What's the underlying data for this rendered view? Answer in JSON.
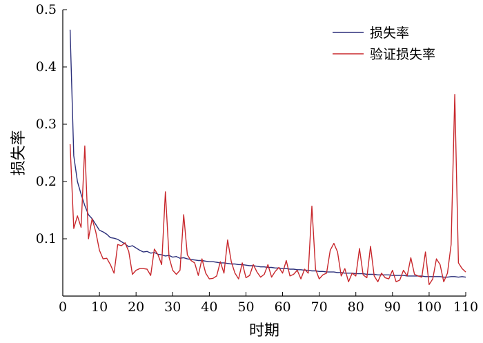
{
  "chart_data": {
    "type": "line",
    "xlabel": "时期",
    "ylabel": "损失率",
    "xlim": [
      0,
      110
    ],
    "ylim": [
      0,
      0.5
    ],
    "x_ticks": [
      0,
      10,
      20,
      30,
      40,
      50,
      60,
      70,
      80,
      90,
      100,
      110
    ],
    "y_ticks": [
      0.1,
      0.2,
      0.3,
      0.4,
      0.5
    ],
    "y_tick_labels": [
      "0.1",
      "0.2",
      "0.3",
      "0.4",
      "0.5"
    ],
    "legend_position": "top-right",
    "grid": false,
    "series": [
      {
        "name": "损失率",
        "color": "#2b2f7a",
        "x": [
          2,
          3,
          4,
          5,
          6,
          7,
          8,
          9,
          10,
          11,
          12,
          13,
          14,
          15,
          16,
          17,
          18,
          19,
          20,
          21,
          22,
          23,
          24,
          25,
          26,
          27,
          28,
          29,
          30,
          31,
          32,
          33,
          34,
          35,
          36,
          37,
          38,
          39,
          40,
          41,
          42,
          43,
          44,
          45,
          46,
          47,
          48,
          49,
          50,
          51,
          52,
          53,
          54,
          55,
          56,
          57,
          58,
          59,
          60,
          61,
          62,
          63,
          64,
          65,
          66,
          67,
          68,
          69,
          70,
          71,
          72,
          73,
          74,
          75,
          76,
          77,
          78,
          79,
          80,
          81,
          82,
          83,
          84,
          85,
          86,
          87,
          88,
          89,
          90,
          91,
          92,
          93,
          94,
          95,
          96,
          97,
          98,
          99,
          100,
          101,
          102,
          103,
          104,
          105,
          106,
          107,
          108,
          109,
          110
        ],
        "y": [
          0.465,
          0.245,
          0.2,
          0.178,
          0.158,
          0.142,
          0.135,
          0.125,
          0.115,
          0.112,
          0.108,
          0.102,
          0.101,
          0.099,
          0.095,
          0.091,
          0.086,
          0.088,
          0.084,
          0.08,
          0.077,
          0.078,
          0.075,
          0.076,
          0.073,
          0.072,
          0.07,
          0.071,
          0.068,
          0.069,
          0.066,
          0.067,
          0.065,
          0.064,
          0.063,
          0.062,
          0.062,
          0.061,
          0.06,
          0.06,
          0.059,
          0.058,
          0.058,
          0.057,
          0.056,
          0.056,
          0.055,
          0.055,
          0.054,
          0.053,
          0.053,
          0.052,
          0.051,
          0.051,
          0.05,
          0.05,
          0.049,
          0.049,
          0.048,
          0.048,
          0.047,
          0.047,
          0.046,
          0.046,
          0.045,
          0.045,
          0.044,
          0.044,
          0.043,
          0.043,
          0.042,
          0.042,
          0.042,
          0.041,
          0.041,
          0.04,
          0.04,
          0.04,
          0.039,
          0.039,
          0.039,
          0.038,
          0.038,
          0.038,
          0.037,
          0.037,
          0.037,
          0.037,
          0.036,
          0.036,
          0.036,
          0.036,
          0.035,
          0.035,
          0.035,
          0.035,
          0.035,
          0.034,
          0.034,
          0.034,
          0.034,
          0.034,
          0.033,
          0.033,
          0.034,
          0.034,
          0.033,
          0.034,
          0.033
        ]
      },
      {
        "name": "验证损失率",
        "color": "#c8282d",
        "x": [
          2,
          3,
          4,
          5,
          6,
          7,
          8,
          9,
          10,
          11,
          12,
          13,
          14,
          15,
          16,
          17,
          18,
          19,
          20,
          21,
          22,
          23,
          24,
          25,
          26,
          27,
          28,
          29,
          30,
          31,
          32,
          33,
          34,
          35,
          36,
          37,
          38,
          39,
          40,
          41,
          42,
          43,
          44,
          45,
          46,
          47,
          48,
          49,
          50,
          51,
          52,
          53,
          54,
          55,
          56,
          57,
          58,
          59,
          60,
          61,
          62,
          63,
          64,
          65,
          66,
          67,
          68,
          69,
          70,
          71,
          72,
          73,
          74,
          75,
          76,
          77,
          78,
          79,
          80,
          81,
          82,
          83,
          84,
          85,
          86,
          87,
          88,
          89,
          90,
          91,
          92,
          93,
          94,
          95,
          96,
          97,
          98,
          99,
          100,
          101,
          102,
          103,
          104,
          105,
          106,
          107,
          108,
          109,
          110
        ],
        "y": [
          0.265,
          0.118,
          0.14,
          0.12,
          0.262,
          0.1,
          0.135,
          0.112,
          0.08,
          0.065,
          0.066,
          0.055,
          0.04,
          0.09,
          0.088,
          0.093,
          0.078,
          0.038,
          0.045,
          0.048,
          0.048,
          0.047,
          0.036,
          0.082,
          0.072,
          0.055,
          0.182,
          0.068,
          0.045,
          0.038,
          0.045,
          0.142,
          0.072,
          0.062,
          0.058,
          0.036,
          0.065,
          0.04,
          0.03,
          0.031,
          0.035,
          0.06,
          0.04,
          0.098,
          0.06,
          0.04,
          0.03,
          0.058,
          0.032,
          0.036,
          0.055,
          0.042,
          0.033,
          0.038,
          0.055,
          0.033,
          0.043,
          0.05,
          0.04,
          0.062,
          0.035,
          0.038,
          0.045,
          0.03,
          0.047,
          0.04,
          0.157,
          0.047,
          0.03,
          0.037,
          0.04,
          0.08,
          0.092,
          0.077,
          0.035,
          0.048,
          0.025,
          0.04,
          0.035,
          0.083,
          0.037,
          0.032,
          0.087,
          0.035,
          0.025,
          0.04,
          0.032,
          0.03,
          0.045,
          0.025,
          0.028,
          0.045,
          0.035,
          0.067,
          0.038,
          0.035,
          0.033,
          0.077,
          0.02,
          0.03,
          0.065,
          0.055,
          0.025,
          0.04,
          0.09,
          0.352,
          0.058,
          0.048,
          0.042
        ]
      }
    ]
  }
}
